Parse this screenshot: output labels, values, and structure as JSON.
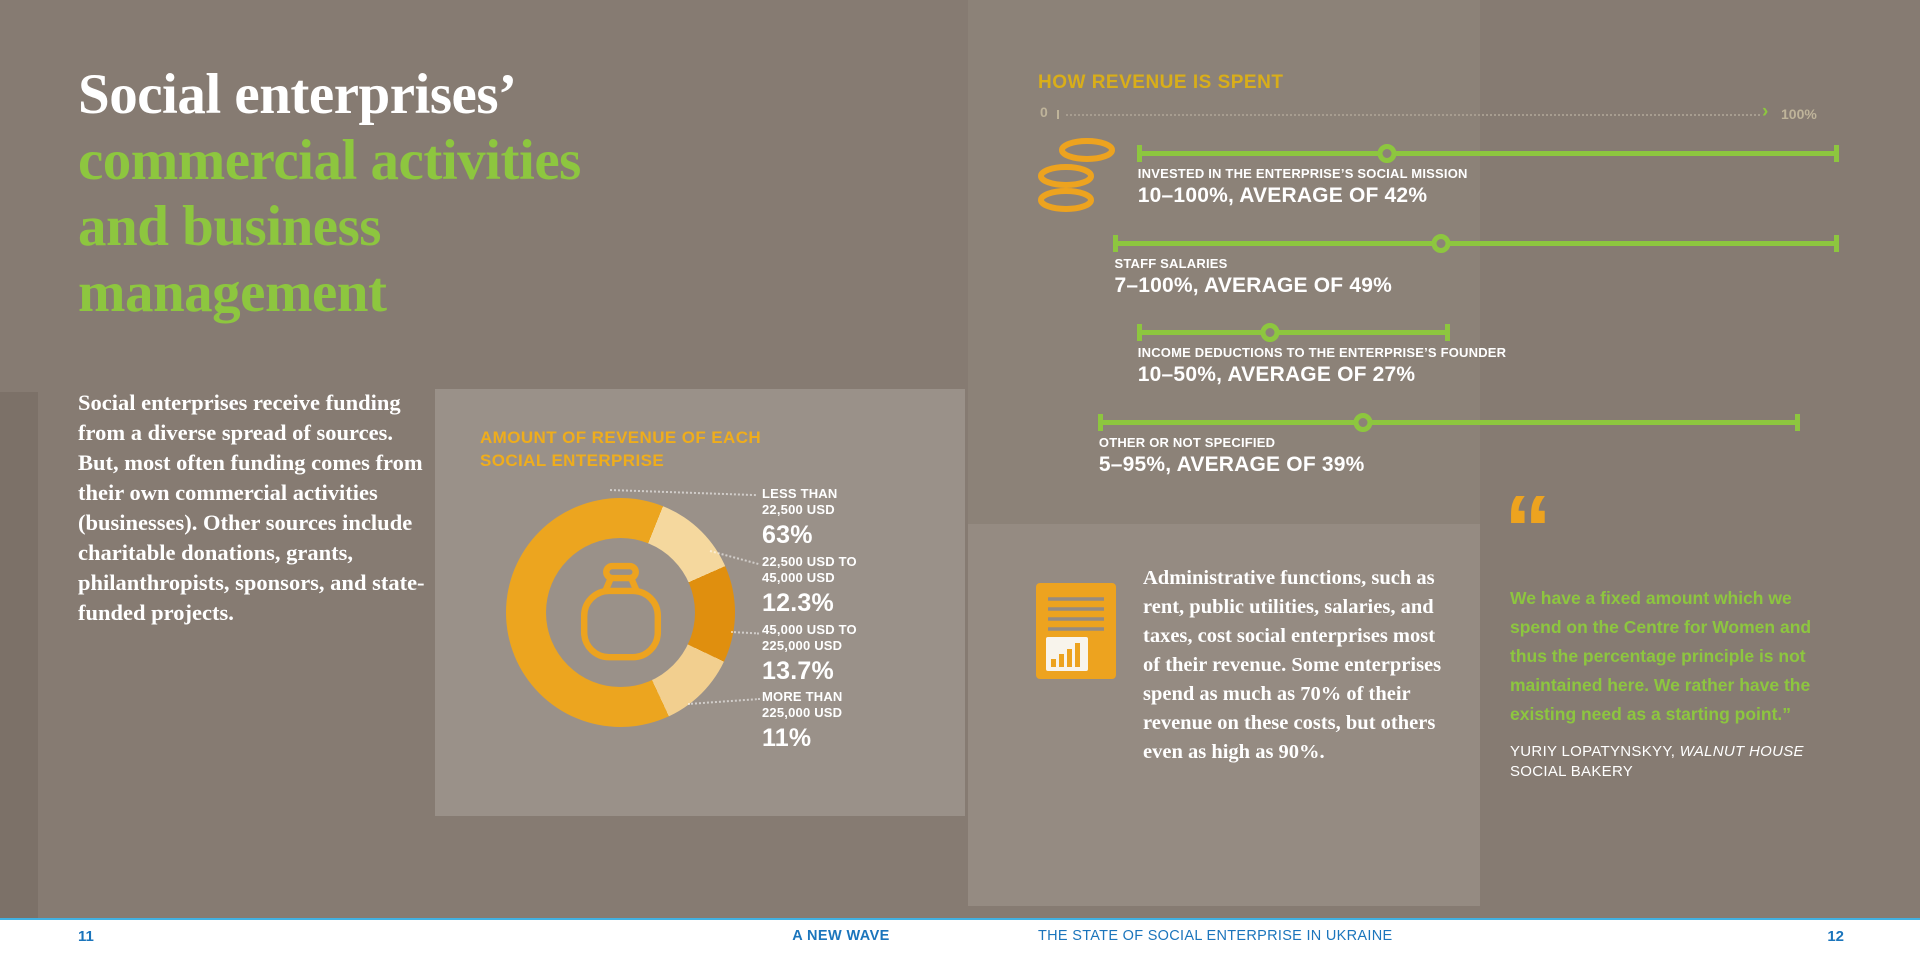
{
  "colors": {
    "background": "#867B72",
    "left_strip": "#7C7168",
    "panel_light": "#9A9189",
    "panel_top_right": "#8C8278",
    "panel_mid": "#958B82",
    "green": "#8DC63F",
    "gold": "#D9AE19",
    "gold_left": "#EFAD1C",
    "orange": "#EDA31F",
    "footer_blue": "#1B75BC",
    "footer_rule": "#41B1E2",
    "scale_text": "#BFB49A",
    "scale_dots": "#A79D90"
  },
  "title": {
    "line1": "Social enterprises’",
    "line2": "commercial activities",
    "line3": "and business",
    "line4": "management"
  },
  "intro_paragraph": "Social enterprises receive funding from a diverse spread of sources. But, most often funding comes from their own commercial activities (businesses). Other sources include charitable donations, grants, philanthropists, sponsors, and state-funded projects.",
  "revenue_amount": {
    "title_line1": "AMOUNT OF REVENUE OF EACH",
    "title_line2": "SOCIAL ENTERPRISE",
    "donut_start_deg": 155,
    "segments": [
      {
        "label_line1": "LESS THAN",
        "label_line2": "22,500 USD",
        "value_text": "63%",
        "value": 63,
        "color": "#ECA51F"
      },
      {
        "label_line1": "22,500 USD TO",
        "label_line2": "45,000 USD",
        "value_text": "12.3%",
        "value": 12.3,
        "color": "#F5D89E"
      },
      {
        "label_line1": "45,000 USD TO",
        "label_line2": "225,000 USD",
        "value_text": "13.7%",
        "value": 13.7,
        "color": "#E08F0E"
      },
      {
        "label_line1": "MORE THAN",
        "label_line2": "225,000 USD",
        "value_text": "11%",
        "value": 11,
        "color": "#F2CF8F"
      }
    ]
  },
  "revenue_spent": {
    "title": "HOW REVENUE IS SPENT",
    "scale_min_label": "0",
    "scale_max_label": "100%",
    "sliders": [
      {
        "label": "INVESTED IN THE ENTERPRISE’S SOCIAL MISSION",
        "value": "10–100%, AVERAGE OF 42%",
        "min": 10,
        "max": 100,
        "avg": 42
      },
      {
        "label": "STAFF SALARIES",
        "value": "7–100%, AVERAGE OF 49%",
        "min": 7,
        "max": 100,
        "avg": 49
      },
      {
        "label": "INCOME DEDUCTIONS TO THE ENTERPRISE’S FOUNDER",
        "value": "10–50%, AVERAGE OF 27%",
        "min": 10,
        "max": 50,
        "avg": 27
      },
      {
        "label": "OTHER OR NOT SPECIFIED",
        "value": "5–95%, AVERAGE OF 39%",
        "min": 5,
        "max": 95,
        "avg": 39
      }
    ]
  },
  "admin_note": "Administrative functions, such as rent, public utilities, salaries, and taxes, cost social enterprises most of their revenue. Some enterprises spend as much as 70% of their revenue on these costs, but others even as high as 90%.",
  "quote": {
    "text": "We have a fixed amount which we spend on the Centre for Women and thus the percentage principle is not maintained here. We rather have the existing need as a starting point.”",
    "attribution_name": "YURIY LOPATYNSKYY, ",
    "attribution_org": "WALNUT HOUSE",
    "attribution_suffix": " SOCIAL BAKERY"
  },
  "footer": {
    "left_page": "11",
    "series_title": "A NEW WAVE",
    "report_title": "THE STATE OF SOCIAL ENTERPRISE IN UKRAINE",
    "right_page": "12"
  },
  "chart_data": [
    {
      "type": "pie",
      "style": "donut",
      "title": "AMOUNT OF REVENUE OF EACH SOCIAL ENTERPRISE",
      "categories": [
        "LESS THAN 22,500 USD",
        "22,500 USD TO 45,000 USD",
        "45,000 USD TO 225,000 USD",
        "MORE THAN 225,000 USD"
      ],
      "values": [
        63,
        12.3,
        13.7,
        11
      ],
      "unit": "percent"
    },
    {
      "type": "range",
      "title": "HOW REVENUE IS SPENT",
      "xlim": [
        0,
        100
      ],
      "series": [
        {
          "name": "INVESTED IN THE ENTERPRISE’S SOCIAL MISSION",
          "min": 10,
          "max": 100,
          "average": 42
        },
        {
          "name": "STAFF SALARIES",
          "min": 7,
          "max": 100,
          "average": 49
        },
        {
          "name": "INCOME DEDUCTIONS TO THE ENTERPRISE’S FOUNDER",
          "min": 10,
          "max": 50,
          "average": 27
        },
        {
          "name": "OTHER OR NOT SPECIFIED",
          "min": 5,
          "max": 95,
          "average": 39
        }
      ]
    }
  ]
}
